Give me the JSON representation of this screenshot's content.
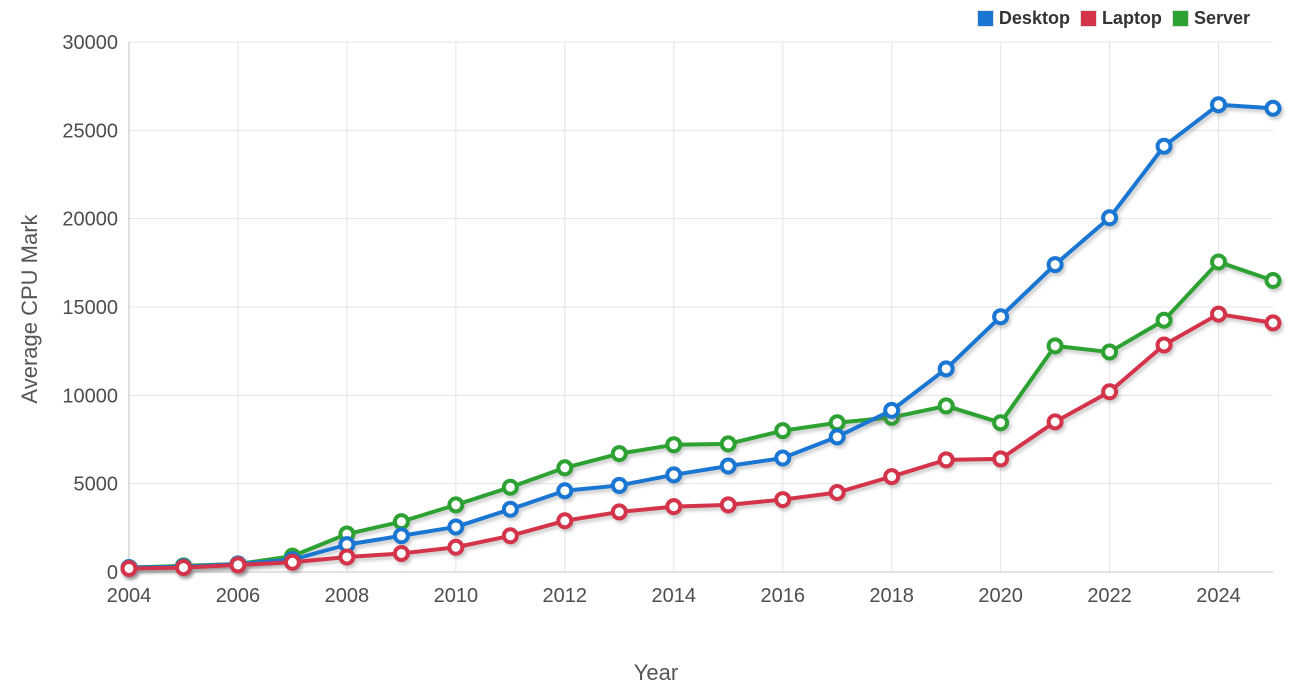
{
  "chart": {
    "background": "#ffffff",
    "grid_color": "#e4e4e4",
    "axis_color": "#cfcfcf",
    "tick_label_color": "#4d4d4d",
    "marker_fill": "#ffffff"
  },
  "chart_data": {
    "type": "line",
    "title": "",
    "xlabel": "Year",
    "ylabel": "Average CPU Mark",
    "x": [
      2004,
      2005,
      2006,
      2007,
      2008,
      2009,
      2010,
      2011,
      2012,
      2013,
      2014,
      2015,
      2016,
      2017,
      2018,
      2019,
      2020,
      2021,
      2022,
      2023,
      2024,
      2025
    ],
    "series": [
      {
        "name": "Desktop",
        "color": "#1976d2",
        "values": [
          250,
          300,
          450,
          700,
          1550,
          2050,
          2550,
          3550,
          4600,
          4900,
          5500,
          6000,
          6450,
          7650,
          9150,
          11500,
          14450,
          17400,
          20050,
          24100,
          26450,
          26250
        ]
      },
      {
        "name": "Laptop",
        "color": "#d33449",
        "values": [
          200,
          250,
          400,
          550,
          850,
          1050,
          1400,
          2050,
          2900,
          3400,
          3700,
          3800,
          4100,
          4500,
          5400,
          6350,
          6400,
          8500,
          10200,
          12850,
          14600,
          14100
        ]
      },
      {
        "name": "Server",
        "color": "#2da233",
        "values": [
          250,
          350,
          450,
          900,
          2150,
          2850,
          3800,
          4800,
          5900,
          6700,
          7200,
          7250,
          8000,
          8450,
          8750,
          9400,
          8450,
          12800,
          12450,
          14250,
          17550,
          16500
        ]
      }
    ],
    "ylim": [
      0,
      30000
    ],
    "yticks": [
      0,
      5000,
      10000,
      15000,
      20000,
      25000,
      30000
    ],
    "xticks": [
      2004,
      2006,
      2008,
      2010,
      2012,
      2014,
      2016,
      2018,
      2020,
      2022,
      2024
    ],
    "grid": true,
    "legend_position": "top-right"
  }
}
